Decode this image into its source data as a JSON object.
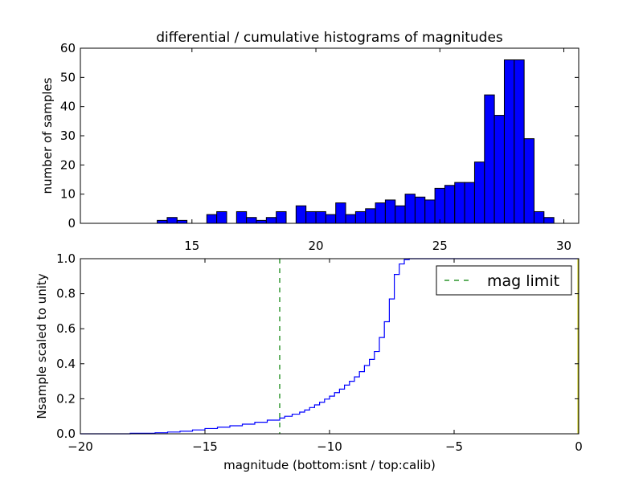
{
  "chart_data": [
    {
      "type": "bar",
      "title": "differential / cumulative histograms of magnitudes",
      "xlabel": "",
      "ylabel": "number of samples",
      "xlim": [
        10.5,
        30.6
      ],
      "ylim": [
        0,
        60
      ],
      "xticks": [
        15,
        20,
        25,
        30
      ],
      "yticks": [
        0,
        10,
        20,
        30,
        40,
        50,
        60
      ],
      "bar_color": "#0000ff",
      "bin_width": 0.4,
      "bins": [
        {
          "x": 13.6,
          "value": 1
        },
        {
          "x": 14.0,
          "value": 2
        },
        {
          "x": 14.4,
          "value": 1
        },
        {
          "x": 15.6,
          "value": 3
        },
        {
          "x": 16.0,
          "value": 4
        },
        {
          "x": 16.8,
          "value": 4
        },
        {
          "x": 17.2,
          "value": 2
        },
        {
          "x": 17.6,
          "value": 1
        },
        {
          "x": 18.0,
          "value": 2
        },
        {
          "x": 18.4,
          "value": 4
        },
        {
          "x": 19.2,
          "value": 6
        },
        {
          "x": 19.6,
          "value": 4
        },
        {
          "x": 20.0,
          "value": 4
        },
        {
          "x": 20.4,
          "value": 3
        },
        {
          "x": 20.8,
          "value": 7
        },
        {
          "x": 21.2,
          "value": 3
        },
        {
          "x": 21.6,
          "value": 4
        },
        {
          "x": 22.0,
          "value": 5
        },
        {
          "x": 22.4,
          "value": 7
        },
        {
          "x": 22.8,
          "value": 8
        },
        {
          "x": 23.2,
          "value": 6
        },
        {
          "x": 23.6,
          "value": 10
        },
        {
          "x": 24.0,
          "value": 9
        },
        {
          "x": 24.4,
          "value": 8
        },
        {
          "x": 24.8,
          "value": 12
        },
        {
          "x": 25.2,
          "value": 13
        },
        {
          "x": 25.6,
          "value": 14
        },
        {
          "x": 26.0,
          "value": 14
        },
        {
          "x": 26.4,
          "value": 21
        },
        {
          "x": 26.8,
          "value": 44
        },
        {
          "x": 27.2,
          "value": 37
        },
        {
          "x": 27.6,
          "value": 56
        },
        {
          "x": 28.0,
          "value": 56
        },
        {
          "x": 28.4,
          "value": 29
        },
        {
          "x": 28.8,
          "value": 4
        },
        {
          "x": 29.2,
          "value": 2
        }
      ]
    },
    {
      "type": "line",
      "title": "",
      "xlabel": "magnitude (bottom:isnt / top:calib)",
      "ylabel": "Nsample scaled to unity",
      "xlim": [
        -20,
        0
      ],
      "ylim": [
        0,
        1.0
      ],
      "xticks": [
        "−20",
        "−15",
        "−10",
        "−5",
        "0"
      ],
      "xtick_values": [
        -20,
        -15,
        -10,
        -5,
        0
      ],
      "yticks": [
        "0.0",
        "0.2",
        "0.4",
        "0.6",
        "0.8",
        "1.0"
      ],
      "ytick_values": [
        0,
        0.2,
        0.4,
        0.6,
        0.8,
        1.0
      ],
      "legend_placement": "top-right",
      "mag_limit": -12,
      "series": [
        {
          "name": "",
          "style": "step",
          "color": "#0000ff",
          "x": [
            -20,
            -18,
            -17,
            -16.5,
            -16,
            -15.5,
            -15,
            -14.5,
            -14,
            -13.5,
            -13,
            -12.5,
            -12,
            -11.8,
            -11.5,
            -11.2,
            -11,
            -10.8,
            -10.6,
            -10.4,
            -10.2,
            -10.0,
            -9.8,
            -9.6,
            -9.4,
            -9.2,
            -9.0,
            -8.8,
            -8.6,
            -8.4,
            -8.2,
            -8.0,
            -7.8,
            -7.6,
            -7.4,
            -7.2,
            -7.0,
            -6.8,
            -6.6,
            -6.4
          ],
          "y": [
            0.0,
            0.003,
            0.006,
            0.01,
            0.015,
            0.022,
            0.03,
            0.038,
            0.046,
            0.055,
            0.066,
            0.078,
            0.09,
            0.1,
            0.112,
            0.124,
            0.136,
            0.15,
            0.165,
            0.18,
            0.198,
            0.215,
            0.235,
            0.255,
            0.278,
            0.3,
            0.325,
            0.355,
            0.39,
            0.425,
            0.47,
            0.55,
            0.64,
            0.77,
            0.91,
            0.97,
            0.995,
            1.0,
            1.0,
            1.0
          ]
        }
      ],
      "vline": {
        "name": "mag limit",
        "x": -12,
        "color": "#008000",
        "style": "dashed"
      }
    }
  ]
}
